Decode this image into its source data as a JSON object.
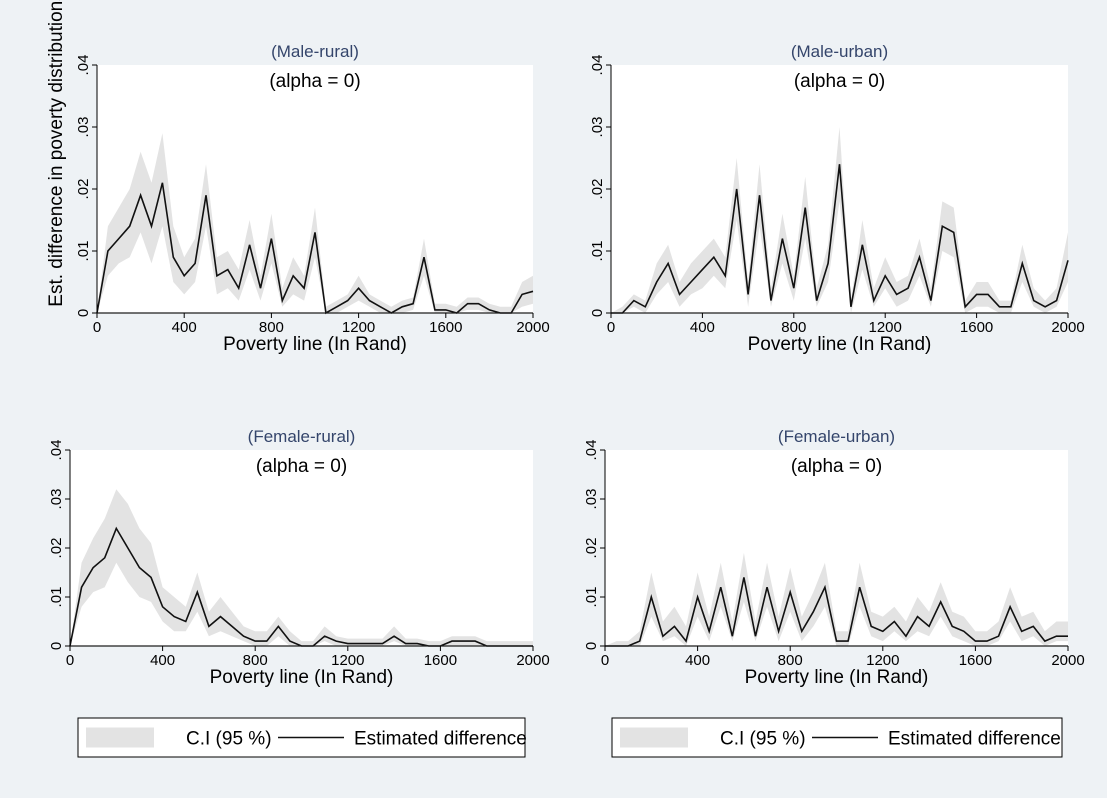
{
  "chart_data": [
    {
      "type": "line",
      "title": "(Male-rural)",
      "subtitle": "(alpha = 0)",
      "xlabel": "Poverty line (In Rand)",
      "ylabel": "Est. difference in poverty distributions",
      "legend": false,
      "x": [
        0,
        50,
        100,
        150,
        200,
        250,
        300,
        350,
        400,
        450,
        500,
        550,
        600,
        650,
        700,
        750,
        800,
        850,
        900,
        950,
        1000,
        1050,
        1100,
        1150,
        1200,
        1250,
        1300,
        1350,
        1400,
        1450,
        1500,
        1550,
        1600,
        1650,
        1700,
        1750,
        1800,
        1850,
        1900,
        1950,
        2000
      ],
      "series": [
        {
          "name": "C.I (95 %)",
          "color": "#e3e3e3",
          "lower": [
            0,
            0.006,
            0.008,
            0.009,
            0.013,
            0.008,
            0.014,
            0.005,
            0.003,
            0.005,
            0.014,
            0.003,
            0.004,
            0.002,
            0.007,
            0.002,
            0.008,
            0.001,
            0.003,
            0.002,
            0.009,
            0,
            0,
            0.001,
            0.002,
            0.001,
            0,
            0,
            0,
            0.0005,
            0.006,
            0,
            0,
            0,
            0.0005,
            0.0005,
            0,
            0,
            0,
            0.001,
            0.0015
          ],
          "upper": [
            0,
            0.014,
            0.017,
            0.02,
            0.026,
            0.021,
            0.029,
            0.014,
            0.009,
            0.012,
            0.024,
            0.009,
            0.01,
            0.007,
            0.015,
            0.006,
            0.016,
            0.004,
            0.009,
            0.006,
            0.017,
            0.001,
            0.002,
            0.003,
            0.006,
            0.003,
            0.002,
            0.001,
            0.002,
            0.0025,
            0.012,
            0.0015,
            0.0015,
            0.001,
            0.0025,
            0.0025,
            0.0015,
            0.001,
            0.001,
            0.005,
            0.006
          ]
        },
        {
          "name": "Estimated difference",
          "color": "#111111",
          "values": [
            0,
            0.01,
            0.012,
            0.014,
            0.019,
            0.014,
            0.021,
            0.009,
            0.006,
            0.008,
            0.019,
            0.006,
            0.007,
            0.004,
            0.011,
            0.004,
            0.012,
            0.002,
            0.006,
            0.004,
            0.013,
            0,
            0.001,
            0.002,
            0.004,
            0.002,
            0.001,
            0,
            0.001,
            0.0015,
            0.009,
            0.0005,
            0.0005,
            0,
            0.0015,
            0.0015,
            0.0005,
            0,
            0,
            0.003,
            0.0035
          ]
        }
      ],
      "xlim": [
        0,
        2000
      ],
      "xticks": [
        0,
        400,
        800,
        1200,
        1600,
        2000
      ],
      "ylim": [
        0,
        0.04
      ],
      "yticks": [
        0,
        {
          "value": 0.01,
          "label": ".01"
        },
        {
          "value": 0.02,
          "label": ".02"
        },
        {
          "value": 0.03,
          "label": ".03"
        },
        {
          "value": 0.04,
          "label": ".04"
        }
      ]
    },
    {
      "type": "line",
      "title": "(Male-urban)",
      "subtitle": "(alpha = 0)",
      "xlabel": "Poverty line (In Rand)",
      "legend": false,
      "x": [
        0,
        50,
        100,
        150,
        200,
        250,
        300,
        350,
        400,
        450,
        500,
        550,
        600,
        650,
        700,
        750,
        800,
        850,
        900,
        950,
        1000,
        1050,
        1100,
        1150,
        1200,
        1250,
        1300,
        1350,
        1400,
        1450,
        1500,
        1550,
        1600,
        1650,
        1700,
        1750,
        1800,
        1850,
        1900,
        1950,
        2000
      ],
      "series": [
        {
          "name": "C.I (95 %)",
          "color": "#e3e3e3",
          "lower": [
            0,
            0,
            0.001,
            0,
            0.003,
            0.005,
            0.001,
            0.003,
            0.004,
            0.006,
            0.004,
            0.015,
            0.001,
            0.014,
            0.001,
            0.008,
            0.002,
            0.012,
            0.001,
            0.005,
            0.018,
            0,
            0.007,
            0.001,
            0.004,
            0.001,
            0.002,
            0.006,
            0.001,
            0.01,
            0.009,
            0,
            0.001,
            0.001,
            0,
            0,
            0.005,
            0.001,
            0,
            0.001,
            0.005
          ],
          "upper": [
            0,
            0.001,
            0.003,
            0.002,
            0.008,
            0.011,
            0.005,
            0.008,
            0.01,
            0.012,
            0.009,
            0.025,
            0.005,
            0.024,
            0.004,
            0.016,
            0.006,
            0.022,
            0.004,
            0.011,
            0.03,
            0.002,
            0.015,
            0.004,
            0.009,
            0.005,
            0.006,
            0.012,
            0.004,
            0.018,
            0.017,
            0.002,
            0.005,
            0.005,
            0.002,
            0.002,
            0.011,
            0.004,
            0.002,
            0.004,
            0.013
          ]
        },
        {
          "name": "Estimated difference",
          "color": "#111111",
          "values": [
            0,
            0,
            0.002,
            0.001,
            0.005,
            0.008,
            0.003,
            0.005,
            0.007,
            0.009,
            0.006,
            0.02,
            0.003,
            0.019,
            0.002,
            0.012,
            0.004,
            0.017,
            0.002,
            0.008,
            0.024,
            0.001,
            0.011,
            0.002,
            0.006,
            0.003,
            0.004,
            0.009,
            0.002,
            0.014,
            0.013,
            0.001,
            0.003,
            0.003,
            0.001,
            0.001,
            0.008,
            0.002,
            0.001,
            0.002,
            0.0085
          ]
        }
      ],
      "xlim": [
        0,
        2000
      ],
      "xticks": [
        0,
        400,
        800,
        1200,
        1600,
        2000
      ],
      "ylim": [
        0,
        0.04
      ],
      "yticks": [
        0,
        {
          "value": 0.01,
          "label": ".01"
        },
        {
          "value": 0.02,
          "label": ".02"
        },
        {
          "value": 0.03,
          "label": ".03"
        },
        {
          "value": 0.04,
          "label": ".04"
        }
      ]
    },
    {
      "type": "line",
      "title": "(Female-rural)",
      "subtitle": "(alpha = 0)",
      "xlabel": "Poverty line (In Rand)",
      "legend": true,
      "x": [
        0,
        50,
        100,
        150,
        200,
        250,
        300,
        350,
        400,
        450,
        500,
        550,
        600,
        650,
        700,
        750,
        800,
        850,
        900,
        950,
        1000,
        1050,
        1100,
        1150,
        1200,
        1250,
        1300,
        1350,
        1400,
        1450,
        1500,
        1550,
        1600,
        1650,
        1700,
        1750,
        1800,
        1850,
        1900,
        1950,
        2000
      ],
      "series": [
        {
          "name": "C.I (95 %)",
          "color": "#e3e3e3",
          "lower": [
            0,
            0.008,
            0.011,
            0.012,
            0.017,
            0.013,
            0.01,
            0.009,
            0.005,
            0.003,
            0.003,
            0.007,
            0.002,
            0.003,
            0.002,
            0.001,
            0,
            0,
            0.002,
            0,
            0,
            0,
            0.001,
            0,
            0,
            0,
            0,
            0,
            0.001,
            0,
            0,
            0,
            0,
            0,
            0,
            0,
            0,
            0,
            0,
            0,
            0
          ],
          "upper": [
            0,
            0.017,
            0.022,
            0.026,
            0.032,
            0.029,
            0.024,
            0.021,
            0.012,
            0.01,
            0.008,
            0.015,
            0.007,
            0.01,
            0.007,
            0.004,
            0.003,
            0.003,
            0.006,
            0.003,
            0.001,
            0.001,
            0.004,
            0.002,
            0.0015,
            0.0015,
            0.0015,
            0.0015,
            0.004,
            0.0015,
            0.0015,
            0.001,
            0.001,
            0.002,
            0.002,
            0.002,
            0.001,
            0.001,
            0.001,
            0.001,
            0.001
          ]
        },
        {
          "name": "Estimated difference",
          "color": "#111111",
          "values": [
            0,
            0.012,
            0.016,
            0.018,
            0.024,
            0.02,
            0.016,
            0.014,
            0.008,
            0.006,
            0.005,
            0.011,
            0.004,
            0.006,
            0.004,
            0.002,
            0.001,
            0.001,
            0.004,
            0.001,
            0,
            0,
            0.002,
            0.001,
            0.0005,
            0.0005,
            0.0005,
            0.0005,
            0.002,
            0.0005,
            0.0005,
            0,
            0,
            0.001,
            0.001,
            0.001,
            0,
            0,
            0,
            0,
            0
          ]
        }
      ],
      "xlim": [
        0,
        2000
      ],
      "xticks": [
        0,
        400,
        800,
        1200,
        1600,
        2000
      ],
      "ylim": [
        0,
        0.04
      ],
      "yticks": [
        0,
        {
          "value": 0.01,
          "label": ".01"
        },
        {
          "value": 0.02,
          "label": ".02"
        },
        {
          "value": 0.03,
          "label": ".03"
        },
        {
          "value": 0.04,
          "label": ".04"
        }
      ]
    },
    {
      "type": "line",
      "title": "(Female-urban)",
      "subtitle": "(alpha = 0)",
      "xlabel": "Poverty line (In Rand)",
      "legend": true,
      "x": [
        0,
        50,
        100,
        150,
        200,
        250,
        300,
        350,
        400,
        450,
        500,
        550,
        600,
        650,
        700,
        750,
        800,
        850,
        900,
        950,
        1000,
        1050,
        1100,
        1150,
        1200,
        1250,
        1300,
        1350,
        1400,
        1450,
        1500,
        1550,
        1600,
        1650,
        1700,
        1750,
        1800,
        1850,
        1900,
        1950,
        2000
      ],
      "series": [
        {
          "name": "C.I (95 %)",
          "color": "#e3e3e3",
          "lower": [
            0,
            0,
            0,
            0,
            0.006,
            0.001,
            0.002,
            0,
            0.006,
            0.001,
            0.008,
            0.001,
            0.009,
            0.001,
            0.008,
            0.001,
            0.007,
            0.001,
            0.004,
            0.008,
            0,
            0,
            0.008,
            0.002,
            0.001,
            0.003,
            0.001,
            0.003,
            0.002,
            0.006,
            0.002,
            0.001,
            0,
            0,
            0.001,
            0.005,
            0.001,
            0.002,
            0,
            0.001,
            0.001
          ],
          "upper": [
            0,
            0.001,
            0.001,
            0.003,
            0.015,
            0.005,
            0.008,
            0.004,
            0.015,
            0.006,
            0.017,
            0.005,
            0.019,
            0.005,
            0.017,
            0.006,
            0.016,
            0.006,
            0.011,
            0.017,
            0.003,
            0.003,
            0.017,
            0.007,
            0.006,
            0.008,
            0.005,
            0.01,
            0.007,
            0.013,
            0.007,
            0.006,
            0.003,
            0.003,
            0.005,
            0.012,
            0.006,
            0.007,
            0.003,
            0.005,
            0.005
          ]
        },
        {
          "name": "Estimated difference",
          "color": "#111111",
          "values": [
            0,
            0,
            0,
            0.001,
            0.01,
            0.002,
            0.004,
            0.001,
            0.01,
            0.003,
            0.012,
            0.002,
            0.014,
            0.002,
            0.012,
            0.003,
            0.011,
            0.003,
            0.007,
            0.012,
            0.001,
            0.001,
            0.012,
            0.004,
            0.003,
            0.005,
            0.002,
            0.006,
            0.004,
            0.009,
            0.004,
            0.003,
            0.001,
            0.001,
            0.002,
            0.008,
            0.003,
            0.004,
            0.001,
            0.002,
            0.002
          ]
        }
      ],
      "xlim": [
        0,
        2000
      ],
      "xticks": [
        0,
        400,
        800,
        1200,
        1600,
        2000
      ],
      "ylim": [
        0,
        0.04
      ],
      "yticks": [
        0,
        {
          "value": 0.01,
          "label": ".01"
        },
        {
          "value": 0.02,
          "label": ".02"
        },
        {
          "value": 0.03,
          "label": ".03"
        },
        {
          "value": 0.04,
          "label": ".04"
        }
      ]
    }
  ]
}
